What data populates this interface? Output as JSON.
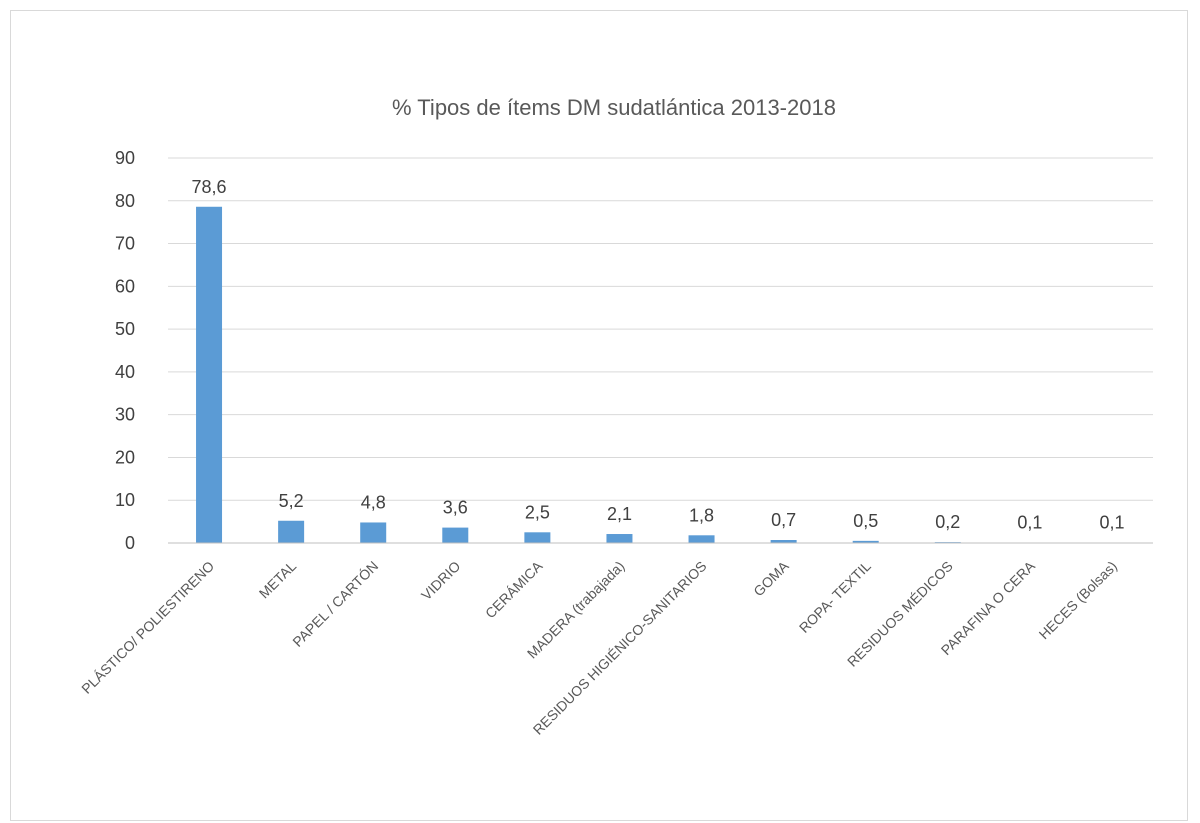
{
  "chart_data": {
    "type": "bar",
    "title": "% Tipos de ítems DM sudatlántica 2013-2018",
    "xlabel": "",
    "ylabel": "",
    "ylim": [
      0,
      90
    ],
    "yticks": [
      0,
      10,
      20,
      30,
      40,
      50,
      60,
      70,
      80,
      90
    ],
    "grid": true,
    "bar_color": "#5b9bd5",
    "categories": [
      "PLÁSTICO/ POLIESTIRENO",
      "METAL",
      "PAPEL / CARTÓN",
      "VIDRIO",
      "CERÁMICA",
      "MADERA (trabajada)",
      "RESIDUOS HIGIÉNICO-SANITARIOS",
      "GOMA",
      "ROPA- TEXTIL",
      "RESIDUOS MÉDICOS",
      "PARAFINA O CERA",
      "HECES (Bolsas)"
    ],
    "values": [
      78.6,
      5.2,
      4.8,
      3.6,
      2.5,
      2.1,
      1.8,
      0.7,
      0.5,
      0.2,
      0.1,
      0.1
    ],
    "data_labels": [
      "78,6",
      "5,2",
      "4,8",
      "3,6",
      "2,5",
      "2,1",
      "1,8",
      "0,7",
      "0,5",
      "0,2",
      "0,1",
      "0,1"
    ]
  }
}
